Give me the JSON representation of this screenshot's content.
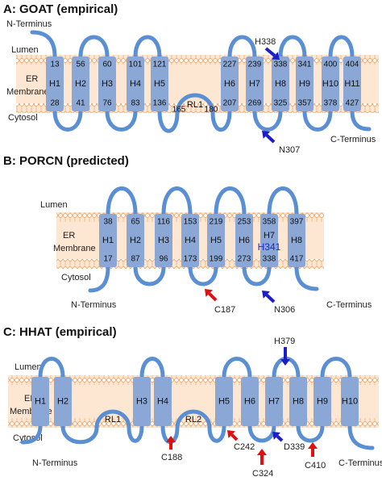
{
  "panels": [
    {
      "title": "A: GOAT (empirical)",
      "lumen": "Lumen",
      "membrane": [
        "ER",
        "Membrane"
      ],
      "cytosol": "Cytosol",
      "n_terminus": "N-Terminus",
      "c_terminus": "C-Terminus",
      "elements": [
        {
          "type": "helix",
          "label": "H1",
          "top": 13,
          "bottom": 28
        },
        {
          "type": "helix",
          "label": "H2",
          "top": 56,
          "bottom": 41
        },
        {
          "type": "helix",
          "label": "H3",
          "top": 60,
          "bottom": 76
        },
        {
          "type": "helix",
          "label": "H4",
          "top": 101,
          "bottom": 83
        },
        {
          "type": "helix",
          "label": "H5",
          "top": 121,
          "bottom": 136
        },
        {
          "type": "reentrant",
          "label": "RL1",
          "left": 165,
          "right": 180
        },
        {
          "type": "helix",
          "label": "H6",
          "top": 227,
          "bottom": 207
        },
        {
          "type": "helix",
          "label": "H7",
          "top": 239,
          "bottom": 269
        },
        {
          "type": "helix",
          "label": "H8",
          "top": 338,
          "bottom": 325
        },
        {
          "type": "helix",
          "label": "H9",
          "top": 341,
          "bottom": 357
        },
        {
          "type": "helix",
          "label": "H10",
          "top": 400,
          "bottom": 378
        },
        {
          "type": "helix",
          "label": "H11",
          "top": 404,
          "bottom": 427
        }
      ],
      "markers": [
        {
          "label": "H338",
          "color": "#1c1cc8"
        },
        {
          "label": "N307",
          "color": "#1c1cc8"
        }
      ]
    },
    {
      "title": "B: PORCN (predicted)",
      "lumen": "Lumen",
      "membrane": [
        "ER",
        "Membrane"
      ],
      "cytosol": "Cytosol",
      "n_terminus": "N-Terminus",
      "c_terminus": "C-Terminus",
      "elements": [
        {
          "type": "helix",
          "label": "H1",
          "top": 38,
          "bottom": 17
        },
        {
          "type": "helix",
          "label": "H2",
          "top": 65,
          "bottom": 87
        },
        {
          "type": "helix",
          "label": "H3",
          "top": 116,
          "bottom": 96
        },
        {
          "type": "helix",
          "label": "H4",
          "top": 153,
          "bottom": 173
        },
        {
          "type": "helix",
          "label": "H5",
          "top": 219,
          "bottom": 199
        },
        {
          "type": "helix",
          "label": "H6",
          "top": 253,
          "bottom": 273
        },
        {
          "type": "helix",
          "label": "H7",
          "top": 358,
          "bottom": 338,
          "mid_label": "H341",
          "mid_color": "#1c1cf0"
        },
        {
          "type": "helix",
          "label": "H8",
          "top": 397,
          "bottom": 417
        }
      ],
      "markers": [
        {
          "label": "C187",
          "color": "#e01010"
        },
        {
          "label": "N306",
          "color": "#1c1cc8"
        }
      ]
    },
    {
      "title": "C: HHAT (empirical)",
      "lumen": "Lumen",
      "membrane": [
        "ER",
        "Membrane"
      ],
      "cytosol": "Cytosol",
      "n_terminus": "N-Terminus",
      "c_terminus": "C-Terminus",
      "elements": [
        {
          "type": "helix",
          "label": "H1"
        },
        {
          "type": "helix",
          "label": "H2"
        },
        {
          "type": "reentrant",
          "label": "RL1"
        },
        {
          "type": "helix",
          "label": "H3"
        },
        {
          "type": "helix",
          "label": "H4"
        },
        {
          "type": "reentrant",
          "label": "RL2"
        },
        {
          "type": "helix",
          "label": "H5"
        },
        {
          "type": "helix",
          "label": "H6"
        },
        {
          "type": "helix",
          "label": "H7"
        },
        {
          "type": "helix",
          "label": "H8"
        },
        {
          "type": "helix",
          "label": "H9"
        },
        {
          "type": "helix",
          "label": "H10"
        }
      ],
      "markers": [
        {
          "label": "H379",
          "color": "#1c1cc8"
        },
        {
          "label": "C188",
          "color": "#e01010"
        },
        {
          "label": "C242",
          "color": "#e01010"
        },
        {
          "label": "D339",
          "color": "#1c1cc8"
        },
        {
          "label": "C324",
          "color": "#e01010"
        },
        {
          "label": "C410",
          "color": "#e01010"
        }
      ]
    }
  ]
}
